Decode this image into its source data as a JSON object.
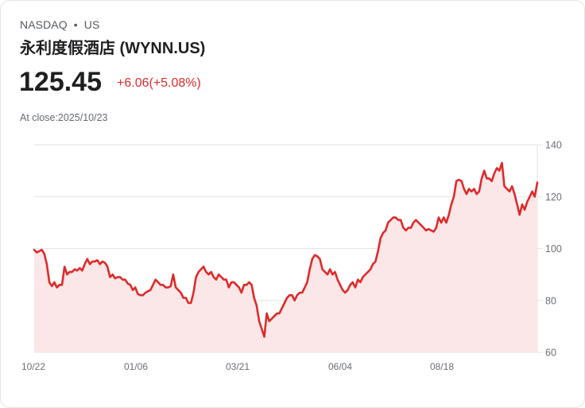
{
  "header": {
    "exchange": "NASDAQ",
    "separator": "•",
    "market": "US",
    "title": "永利度假酒店 (WYNN.US)",
    "price": "125.45",
    "change": "+6.06(+5.08%)",
    "close_label": "At close:2025/10/23"
  },
  "colors": {
    "line": "#dd2a2a",
    "fill": "#fbe7e7",
    "change": "#dd2a2a",
    "grid": "#e3e3e3"
  },
  "chart_data": {
    "type": "area",
    "title": "永利度假酒店 (WYNN.US)",
    "xlabel": "",
    "ylabel": "",
    "ylim": [
      60,
      140
    ],
    "yticks": [
      60,
      80,
      100,
      120,
      140
    ],
    "xtick_labels": [
      "10/22",
      "01/06",
      "03/21",
      "06/04",
      "08/18"
    ],
    "grid": "horizontal",
    "y_axis_position": "right",
    "series": [
      {
        "name": "WYNN.US",
        "x_start": "10/22",
        "x_end": "10/23",
        "values": [
          99.5,
          98.5,
          99,
          99.5,
          98,
          94,
          87,
          85.5,
          87,
          85,
          86,
          86,
          93,
          90,
          91,
          91,
          92,
          91.5,
          92.5,
          91.5,
          94,
          96,
          94,
          95,
          95,
          95.5,
          94,
          95,
          94.5,
          93,
          89,
          90,
          88.5,
          89,
          89,
          88,
          88,
          86.5,
          86,
          84,
          85,
          82.5,
          82,
          82,
          83,
          83.5,
          84,
          86,
          88,
          87,
          86,
          86,
          85,
          85,
          85.5,
          90,
          85,
          84,
          83,
          81,
          81,
          79,
          79,
          83,
          89,
          91,
          92,
          93,
          91,
          90,
          91,
          89,
          88,
          90,
          89,
          88,
          88,
          85,
          87,
          87,
          86,
          85,
          83,
          86,
          86,
          87,
          86,
          81,
          78,
          72,
          69,
          66,
          75,
          72,
          73,
          74,
          75,
          75,
          77,
          79,
          81,
          82,
          82,
          80,
          82,
          83,
          83,
          85,
          87,
          92,
          96,
          97.5,
          97,
          96,
          92,
          91,
          90,
          92,
          90,
          91,
          88,
          86,
          84,
          83,
          84,
          86,
          87,
          85,
          88,
          87,
          89,
          90,
          91,
          92,
          94,
          95,
          99,
          104,
          106,
          107,
          110,
          111,
          112,
          112,
          111,
          111,
          108,
          107,
          108,
          108,
          110,
          111,
          110,
          109,
          108,
          107,
          107.5,
          107,
          106.5,
          108,
          112,
          110,
          112,
          110,
          113,
          117,
          120,
          126,
          126.5,
          126,
          123,
          121,
          123,
          122,
          123,
          121,
          122,
          127,
          130,
          127,
          127,
          126,
          129,
          131,
          130,
          133,
          124,
          123,
          122,
          124,
          121,
          117,
          113,
          117,
          115,
          118,
          120,
          122,
          120,
          125.45
        ]
      }
    ]
  }
}
